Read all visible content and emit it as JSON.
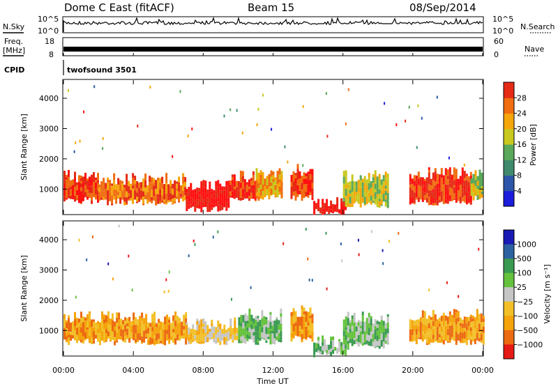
{
  "header": {
    "title": "Dome C East (fitACF)",
    "beam": "Beam 15",
    "date": "08/Sep/2014"
  },
  "top_panels": {
    "nsky_label": "N.Sky",
    "nsearch_label": "N.Search",
    "nsky_ticks": [
      "10^5",
      "10^0"
    ],
    "nsearch_ticks": [
      "10^5",
      "10^0"
    ],
    "freq_label_1": "Freq.",
    "freq_label_2": "[MHz]",
    "freq_ticks": [
      "18",
      "8"
    ],
    "nave_label": "Nave",
    "nave_ticks": [
      "60",
      "0"
    ],
    "cpid_label": "CPID",
    "cpid_value": "twofsound 3501"
  },
  "chart_data": [
    {
      "type": "heatmap",
      "title": "",
      "xlabel": "Time UT",
      "ylabel": "Slant Range [km]",
      "xlim": [
        0,
        24
      ],
      "ylim": [
        180,
        4600
      ],
      "x_ticks": [
        "00:00",
        "04:00",
        "08:00",
        "12:00",
        "16:00",
        "20:00",
        "00:00"
      ],
      "y_ticks": [
        1000,
        2000,
        3000,
        4000
      ],
      "colorbar": {
        "label": "Power [dB]",
        "ticks": [
          "4",
          "8",
          "12",
          "16",
          "20",
          "24",
          "28"
        ],
        "range": [
          0,
          30
        ]
      },
      "regions": [
        {
          "t": [
            0.0,
            2.0
          ],
          "range_km": [
            600,
            1500
          ],
          "value_db": 24
        },
        {
          "t": [
            2.0,
            7.0
          ],
          "range_km": [
            550,
            1400
          ],
          "value_db": 22
        },
        {
          "t": [
            7.0,
            9.5
          ],
          "range_km": [
            300,
            1200
          ],
          "value_db": 28
        },
        {
          "t": [
            9.5,
            11.0
          ],
          "range_km": [
            600,
            1500
          ],
          "value_db": 26
        },
        {
          "t": [
            11.0,
            12.5
          ],
          "range_km": [
            700,
            1600
          ],
          "value_db": 18
        },
        {
          "t": [
            13.0,
            14.3
          ],
          "range_km": [
            700,
            1700
          ],
          "value_db": 26
        },
        {
          "t": [
            14.3,
            16.2
          ],
          "range_km": [
            200,
            600
          ],
          "value_db": 29
        },
        {
          "t": [
            16.0,
            18.6
          ],
          "range_km": [
            450,
            1500
          ],
          "value_db": 14
        },
        {
          "t": [
            19.8,
            23.3
          ],
          "range_km": [
            550,
            1600
          ],
          "value_db": 24
        },
        {
          "t": [
            23.3,
            24.0
          ],
          "range_km": [
            700,
            1600
          ],
          "value_db": 16
        }
      ]
    },
    {
      "type": "heatmap",
      "title": "",
      "xlabel": "Time UT",
      "ylabel": "Slant Range [km]",
      "xlim": [
        0,
        24
      ],
      "ylim": [
        180,
        4600
      ],
      "x_ticks": [
        "00:00",
        "04:00",
        "08:00",
        "12:00",
        "16:00",
        "20:00",
        "00:00"
      ],
      "y_ticks": [
        1000,
        2000,
        3000,
        4000
      ],
      "colorbar": {
        "label": "Velocity [m s⁻¹]",
        "ticks": [
          "1000",
          "500",
          "100",
          "25",
          "−25",
          "−100",
          "−500",
          "−1000"
        ]
      },
      "regions": [
        {
          "t": [
            0.0,
            3.0
          ],
          "range_km": [
            600,
            1500
          ],
          "value_ms": -100
        },
        {
          "t": [
            3.0,
            7.0
          ],
          "range_km": [
            600,
            1500
          ],
          "value_ms": -200
        },
        {
          "t": [
            7.0,
            10.0
          ],
          "range_km": [
            600,
            1300
          ],
          "value_ms": -25
        },
        {
          "t": [
            10.0,
            12.5
          ],
          "range_km": [
            600,
            1600
          ],
          "value_ms": 100
        },
        {
          "t": [
            13.0,
            14.3
          ],
          "range_km": [
            700,
            1700
          ],
          "value_ms": -100
        },
        {
          "t": [
            14.3,
            16.2
          ],
          "range_km": [
            200,
            700
          ],
          "value_ms": 100
        },
        {
          "t": [
            16.0,
            18.6
          ],
          "range_km": [
            450,
            1500
          ],
          "value_ms": 100
        },
        {
          "t": [
            19.8,
            24.0
          ],
          "range_km": [
            600,
            1600
          ],
          "value_ms": -100
        }
      ]
    }
  ],
  "colors": {
    "power_scale": [
      "#1c1cdc",
      "#2c56a8",
      "#3f8a6c",
      "#5aa85a",
      "#c8c81e",
      "#f5a60a",
      "#f06d10",
      "#e52a15",
      "#ff1010"
    ],
    "velocity_scale": [
      "#e51a14",
      "#ec6a10",
      "#f5a30a",
      "#f2bf26",
      "#c6c6c6",
      "#64c23c",
      "#3a9a52",
      "#2c62a0",
      "#1a1ab4"
    ]
  }
}
